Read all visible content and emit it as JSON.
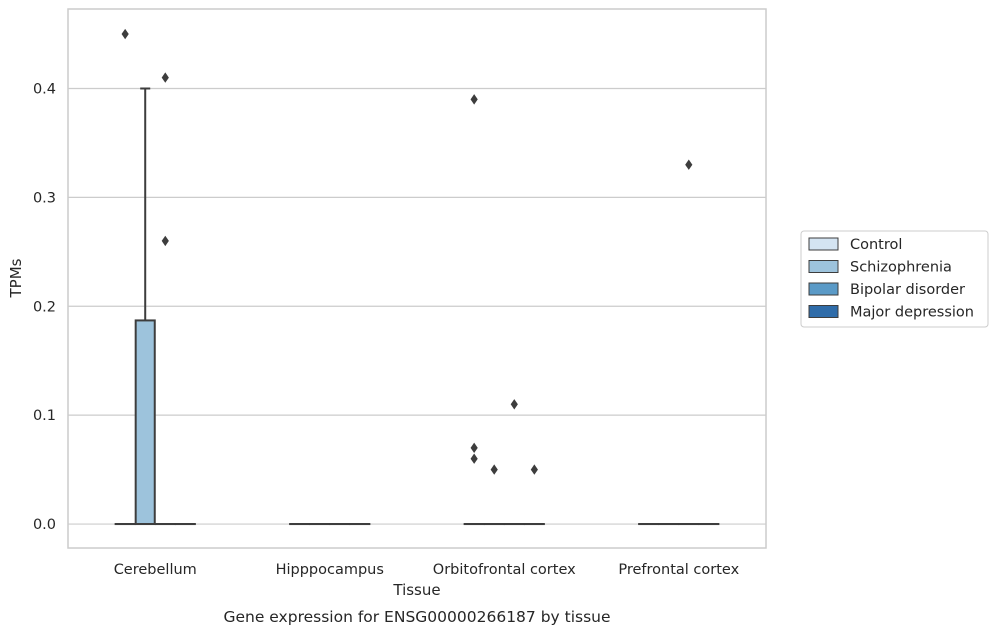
{
  "chart_data": {
    "type": "box",
    "caption": "Gene expression for ENSG00000266187 by tissue",
    "xlabel": "Tissue",
    "ylabel": "TPMs",
    "ylim": [
      -0.022,
      0.473
    ],
    "yticks": [
      "0.0",
      "0.1",
      "0.2",
      "0.3",
      "0.4"
    ],
    "grid": true,
    "legend_position": "right",
    "categories": [
      "Cerebellum",
      "Hipppocampus",
      "Orbitofrontal cortex",
      "Prefrontal cortex"
    ],
    "series": [
      {
        "name": "Control",
        "color": "#d4e4f2"
      },
      {
        "name": "Schizophrenia",
        "color": "#9dc3dc"
      },
      {
        "name": "Bipolar disorder",
        "color": "#5a9ac7"
      },
      {
        "name": "Major depression",
        "color": "#2f6ca9"
      }
    ],
    "boxes": [
      {
        "category": "Cerebellum",
        "series": "Control",
        "q1": 0,
        "median": 0,
        "q3": 0,
        "whisker_low": 0,
        "whisker_high": 0,
        "outliers": [
          0.45
        ]
      },
      {
        "category": "Cerebellum",
        "series": "Schizophrenia",
        "q1": 0,
        "median": 0,
        "q3": 0.187,
        "whisker_low": 0,
        "whisker_high": 0.4,
        "outliers": []
      },
      {
        "category": "Cerebellum",
        "series": "Bipolar disorder",
        "q1": 0,
        "median": 0,
        "q3": 0,
        "whisker_low": 0,
        "whisker_high": 0,
        "outliers": [
          0.41,
          0.26
        ]
      },
      {
        "category": "Cerebellum",
        "series": "Major depression",
        "q1": 0,
        "median": 0,
        "q3": 0,
        "whisker_low": 0,
        "whisker_high": 0,
        "outliers": []
      },
      {
        "category": "Hipppocampus",
        "series": "Control",
        "q1": 0,
        "median": 0,
        "q3": 0,
        "whisker_low": 0,
        "whisker_high": 0,
        "outliers": []
      },
      {
        "category": "Hipppocampus",
        "series": "Schizophrenia",
        "q1": 0,
        "median": 0,
        "q3": 0,
        "whisker_low": 0,
        "whisker_high": 0,
        "outliers": []
      },
      {
        "category": "Hipppocampus",
        "series": "Bipolar disorder",
        "q1": 0,
        "median": 0,
        "q3": 0,
        "whisker_low": 0,
        "whisker_high": 0,
        "outliers": []
      },
      {
        "category": "Hipppocampus",
        "series": "Major depression",
        "q1": 0,
        "median": 0,
        "q3": 0,
        "whisker_low": 0,
        "whisker_high": 0,
        "outliers": []
      },
      {
        "category": "Orbitofrontal cortex",
        "series": "Control",
        "q1": 0,
        "median": 0,
        "q3": 0,
        "whisker_low": 0,
        "whisker_high": 0,
        "outliers": [
          0.39,
          0.07,
          0.06
        ]
      },
      {
        "category": "Orbitofrontal cortex",
        "series": "Schizophrenia",
        "q1": 0,
        "median": 0,
        "q3": 0,
        "whisker_low": 0,
        "whisker_high": 0,
        "outliers": [
          0.05
        ]
      },
      {
        "category": "Orbitofrontal cortex",
        "series": "Bipolar disorder",
        "q1": 0,
        "median": 0,
        "q3": 0,
        "whisker_low": 0,
        "whisker_high": 0,
        "outliers": [
          0.11
        ]
      },
      {
        "category": "Orbitofrontal cortex",
        "series": "Major depression",
        "q1": 0,
        "median": 0,
        "q3": 0,
        "whisker_low": 0,
        "whisker_high": 0,
        "outliers": [
          0.05
        ]
      },
      {
        "category": "Prefrontal cortex",
        "series": "Control",
        "q1": 0,
        "median": 0,
        "q3": 0,
        "whisker_low": 0,
        "whisker_high": 0,
        "outliers": []
      },
      {
        "category": "Prefrontal cortex",
        "series": "Schizophrenia",
        "q1": 0,
        "median": 0,
        "q3": 0,
        "whisker_low": 0,
        "whisker_high": 0,
        "outliers": []
      },
      {
        "category": "Prefrontal cortex",
        "series": "Bipolar disorder",
        "q1": 0,
        "median": 0,
        "q3": 0,
        "whisker_low": 0,
        "whisker_high": 0,
        "outliers": [
          0.33
        ]
      },
      {
        "category": "Prefrontal cortex",
        "series": "Major depression",
        "q1": 0,
        "median": 0,
        "q3": 0,
        "whisker_low": 0,
        "whisker_high": 0,
        "outliers": []
      }
    ]
  }
}
